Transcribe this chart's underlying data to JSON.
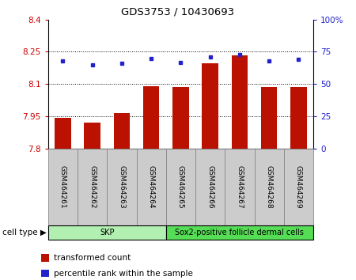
{
  "title": "GDS3753 / 10430693",
  "samples": [
    "GSM464261",
    "GSM464262",
    "GSM464263",
    "GSM464264",
    "GSM464265",
    "GSM464266",
    "GSM464267",
    "GSM464268",
    "GSM464269"
  ],
  "bar_values": [
    7.943,
    7.921,
    7.965,
    8.09,
    8.085,
    8.195,
    8.235,
    8.085,
    8.085
  ],
  "dot_values": [
    68,
    65,
    66,
    70,
    67,
    71,
    73,
    68,
    69
  ],
  "ylim_left": [
    7.8,
    8.4
  ],
  "ylim_right": [
    0,
    100
  ],
  "yticks_left": [
    7.8,
    7.95,
    8.1,
    8.25,
    8.4
  ],
  "ytick_labels_left": [
    "7.8",
    "7.95",
    "8.1",
    "8.25",
    "8.4"
  ],
  "yticks_right": [
    0,
    25,
    50,
    75,
    100
  ],
  "ytick_labels_right": [
    "0",
    "25",
    "50",
    "75",
    "100%"
  ],
  "hlines": [
    7.95,
    8.1,
    8.25
  ],
  "cell_groups": [
    {
      "label": "SKP",
      "start": 0,
      "end": 4,
      "color": "#b2f0b2"
    },
    {
      "label": "Sox2-positive follicle dermal cells",
      "start": 4,
      "end": 9,
      "color": "#55dd55"
    }
  ],
  "cell_type_label": "cell type",
  "bar_color": "#BB1100",
  "dot_color": "#2222CC",
  "legend_items": [
    {
      "color": "#BB1100",
      "label": "transformed count"
    },
    {
      "color": "#2222CC",
      "label": "percentile rank within the sample"
    }
  ],
  "bar_width": 0.55,
  "ybase": 7.8,
  "label_box_color": "#CCCCCC",
  "label_box_edge": "#888888"
}
